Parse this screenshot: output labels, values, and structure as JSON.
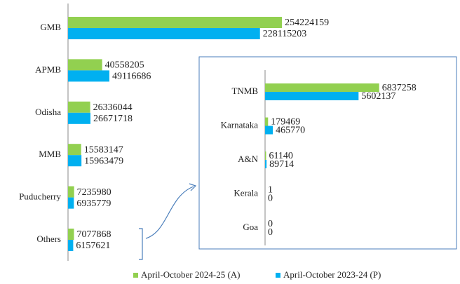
{
  "chart_data": [
    {
      "type": "bar",
      "orientation": "horizontal",
      "categories": [
        "GMB",
        "APMB",
        "Odisha",
        "MMB",
        "Puducherry",
        "Others"
      ],
      "series": [
        {
          "name": "April-October 2024-25 (A)",
          "color": "#92d050",
          "values": [
            254224159,
            40558205,
            26336044,
            15583147,
            7235980,
            7077868
          ]
        },
        {
          "name": "April-October 2023-24 (P)",
          "color": "#00b0f0",
          "values": [
            228115203,
            49116686,
            26671718,
            15963479,
            6935779,
            6157621
          ]
        }
      ],
      "xlim": [
        0,
        300000000
      ],
      "legend": "bottom"
    },
    {
      "type": "bar",
      "orientation": "horizontal",
      "categories": [
        "TNMB",
        "Karnataka",
        "A&N",
        "Kerala",
        "Goa"
      ],
      "series": [
        {
          "color": "#92d050",
          "values": [
            6837258,
            179469,
            61140,
            1,
            0
          ]
        },
        {
          "color": "#00b0f0",
          "values": [
            5602137,
            465770,
            89714,
            0,
            0
          ]
        }
      ],
      "xlim": [
        0,
        10000000
      ]
    }
  ]
}
